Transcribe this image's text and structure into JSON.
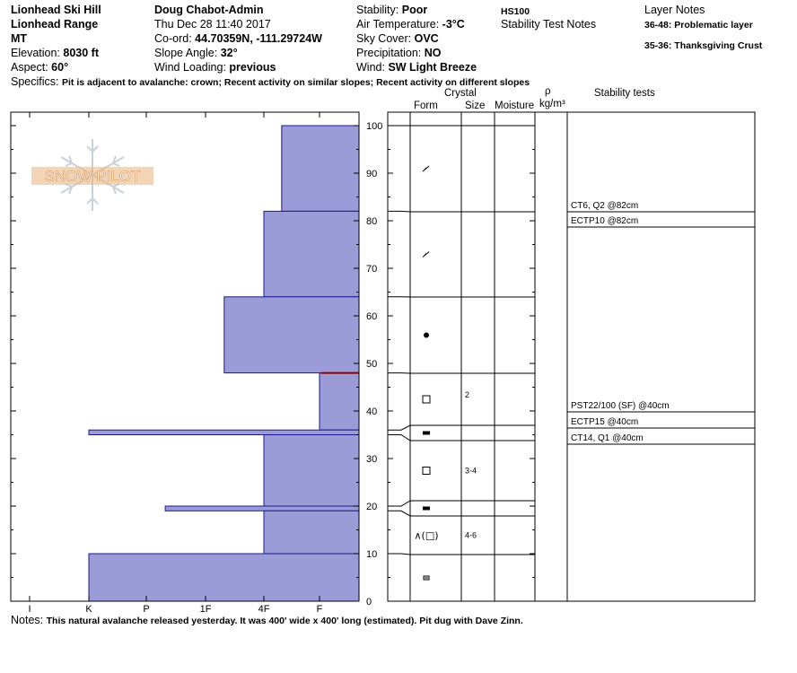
{
  "header": {
    "location": "Lionhead Ski Hill",
    "range": "Lionhead Range",
    "state": "MT",
    "elevation_label": "Elevation:",
    "elevation": "8030 ft",
    "aspect_label": "Aspect:",
    "aspect": "60°",
    "observer": "Doug Chabot-Admin",
    "datetime": "Thu Dec 28 11:40 2017",
    "coord_label": "Co-ord:",
    "coord": "44.70359N, -111.29724W",
    "slope_label": "Slope Angle:",
    "slope": "32°",
    "wind_loading_label": "Wind Loading:",
    "wind_loading": "previous",
    "stability_label": "Stability:",
    "stability": "Poor",
    "air_temp_label": "Air Temperature:",
    "air_temp": "-3°C",
    "sky_label": "Sky Cover:",
    "sky": "OVC",
    "precip_label": "Precipitation:",
    "precip": "NO",
    "wind_label": "Wind:",
    "wind": "SW Light Breeze",
    "hs": "HS100",
    "stability_notes_title": "Stability Test Notes",
    "layer_notes_title": "Layer Notes",
    "layer_notes": [
      {
        "range": "36-48:",
        "text": "Problematic layer"
      },
      {
        "range": "35-36:",
        "text": "Thanksgiving Crust"
      }
    ],
    "specifics_label": "Specifics:",
    "specifics": "Pit is adjacent to avalanche: crown; Recent activity on similar slopes; Recent activity on different slopes",
    "notes_label": "Notes:",
    "notes": "This natural avalanche released yesterday. It was 400' wide x 400' long (estimated). Pit dug with Dave Zinn."
  },
  "columns": {
    "crystal": "Crystal",
    "form": "Form",
    "size": "Size",
    "moisture": "Moisture",
    "rho": "ρ",
    "rho_unit": "kg/m³",
    "stability_tests": "Stability tests"
  },
  "logo_text": "SNOW PILOT",
  "chart_data": {
    "type": "snow-profile",
    "hardness_axis_ticks": [
      "I",
      "K",
      "P",
      "1F",
      "4F",
      "F"
    ],
    "depth_axis_ticks": [
      0,
      10,
      20,
      30,
      40,
      50,
      60,
      70,
      80,
      90,
      100
    ],
    "depth_range_cm": [
      0,
      100
    ],
    "hardness_bars": [
      {
        "bottom": 82,
        "top": 100,
        "hardness": "4F+"
      },
      {
        "bottom": 64,
        "top": 82,
        "hardness": "4F"
      },
      {
        "bottom": 48,
        "top": 64,
        "hardness": "1F+"
      },
      {
        "bottom": 36,
        "top": 48,
        "hardness": "F"
      },
      {
        "bottom": 35,
        "top": 36,
        "hardness": "K"
      },
      {
        "bottom": 20,
        "top": 35,
        "hardness": "4F"
      },
      {
        "bottom": 19,
        "top": 20,
        "hardness": "P+"
      },
      {
        "bottom": 10,
        "top": 19,
        "hardness": "4F"
      },
      {
        "bottom": 0,
        "top": 10,
        "hardness": "K"
      }
    ],
    "boundaries": [
      100,
      82,
      64,
      48,
      36,
      35,
      20,
      19,
      10
    ],
    "problem_layer_marker": 48,
    "layers": [
      {
        "bottom": 82,
        "top": 100,
        "form": "decomposing",
        "size": ""
      },
      {
        "bottom": 64,
        "top": 82,
        "form": "decomposing",
        "size": ""
      },
      {
        "bottom": 48,
        "top": 64,
        "form": "rounded",
        "size": ""
      },
      {
        "bottom": 36,
        "top": 48,
        "form": "faceted",
        "size": "2"
      },
      {
        "bottom": 35,
        "top": 36,
        "form": "crust",
        "size": ""
      },
      {
        "bottom": 20,
        "top": 35,
        "form": "faceted",
        "size": "3-4"
      },
      {
        "bottom": 19,
        "top": 20,
        "form": "crust",
        "size": ""
      },
      {
        "bottom": 10,
        "top": 19,
        "form": "depth-hoar",
        "form_label": "∧(□)",
        "size": "4-6"
      },
      {
        "bottom": 0,
        "top": 10,
        "form": "rounding-facets",
        "size": ""
      }
    ],
    "stability_tests": [
      {
        "text": "CT6, Q2 @82cm",
        "depth": 82
      },
      {
        "text": "ECTP10 @82cm",
        "depth": 82
      },
      {
        "text": "PST22/100 (SF) @40cm",
        "depth": 40
      },
      {
        "text": "ECTP15 @40cm",
        "depth": 40
      },
      {
        "text": "CT14, Q1 @40cm",
        "depth": 40
      }
    ],
    "colors": {
      "bar": "#9b9bd7",
      "bar_edge": "#1a1a8a",
      "marker": "#8b0000"
    }
  }
}
